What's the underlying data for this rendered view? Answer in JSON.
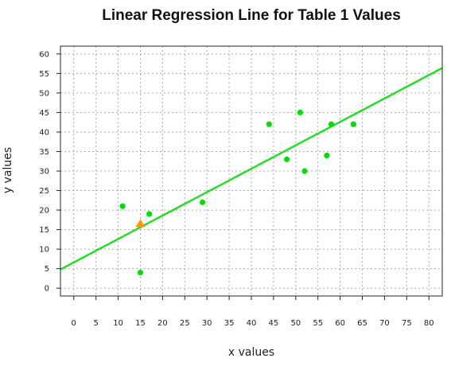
{
  "chart_data": {
    "type": "scatter",
    "title": "Linear Regression Line for Table 1 Values",
    "xlabel": "x values",
    "ylabel": "y values",
    "xlim": [
      -3,
      83
    ],
    "ylim": [
      -2,
      62
    ],
    "x_ticks": [
      0,
      5,
      10,
      15,
      20,
      25,
      30,
      35,
      40,
      45,
      50,
      55,
      60,
      65,
      70,
      75,
      80
    ],
    "y_ticks": [
      0,
      5,
      10,
      15,
      20,
      25,
      30,
      35,
      40,
      45,
      50,
      55,
      60
    ],
    "grid": true,
    "series": [
      {
        "type": "scatter",
        "color": "#00e000",
        "marker": "circle",
        "points": [
          {
            "x": 11,
            "y": 21
          },
          {
            "x": 15,
            "y": 4
          },
          {
            "x": 17,
            "y": 19
          },
          {
            "x": 29,
            "y": 22
          },
          {
            "x": 44,
            "y": 42
          },
          {
            "x": 48,
            "y": 33
          },
          {
            "x": 51,
            "y": 45
          },
          {
            "x": 52,
            "y": 30
          },
          {
            "x": 57,
            "y": 34
          },
          {
            "x": 58,
            "y": 42
          },
          {
            "x": 63,
            "y": 42
          }
        ]
      },
      {
        "type": "line",
        "color": "#22dd22",
        "intercept": 6.6,
        "slope": 0.6
      },
      {
        "type": "scatter",
        "color": "#ff9900",
        "marker": "triangle",
        "points": [
          {
            "x": 15,
            "y": 16.5
          }
        ]
      }
    ]
  }
}
